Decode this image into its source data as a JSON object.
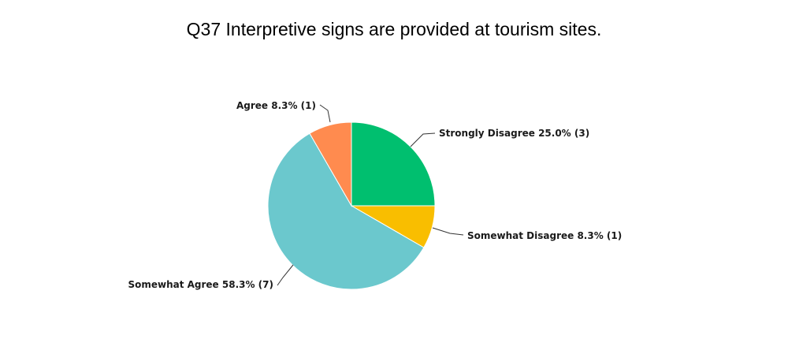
{
  "chart_data": {
    "type": "pie",
    "title": "Q37 Interpretive signs are provided at tourism sites.",
    "legend": "none",
    "slices": [
      {
        "label": "Strongly Disagree",
        "percent": "25.0%",
        "count": "(3)",
        "value": 3,
        "color": "#00bf6f"
      },
      {
        "label": "Somewhat Disagree",
        "percent": "8.3%",
        "count": "(1)",
        "value": 1,
        "color": "#f9be00"
      },
      {
        "label": "Somewhat Agree",
        "percent": "58.3%",
        "count": "(7)",
        "value": 7,
        "color": "#6bc8cd"
      },
      {
        "label": "Agree",
        "percent": "8.3%",
        "count": "(1)",
        "value": 1,
        "color": "#ff8b4f"
      }
    ]
  }
}
